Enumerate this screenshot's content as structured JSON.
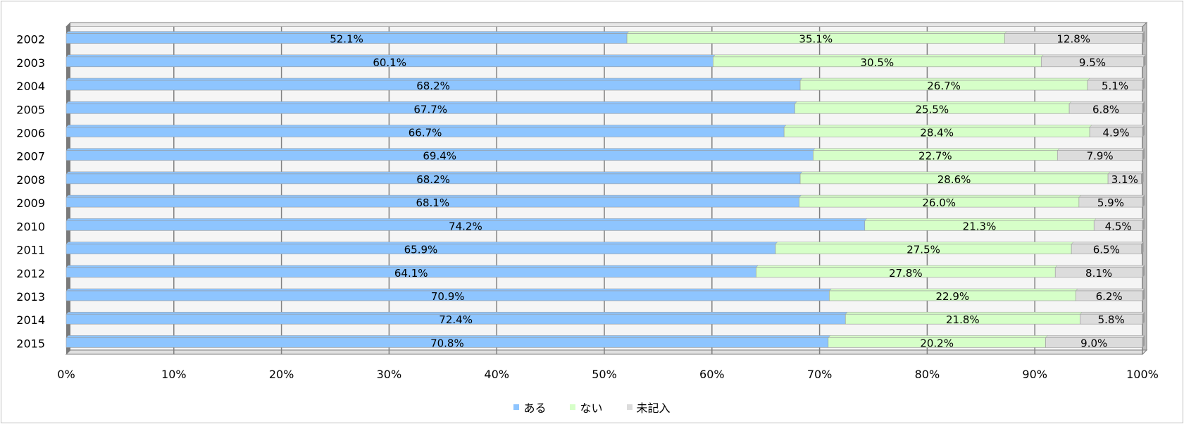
{
  "chart_data": {
    "type": "bar",
    "orientation": "horizontal",
    "stacked": "percent",
    "categories": [
      "2002",
      "2003",
      "2004",
      "2005",
      "2006",
      "2007",
      "2008",
      "2009",
      "2010",
      "2011",
      "2012",
      "2013",
      "2014",
      "2015"
    ],
    "series": [
      {
        "name": "ある",
        "color": "#8ec5ff",
        "values": [
          52.1,
          60.1,
          68.2,
          67.7,
          66.7,
          69.4,
          68.2,
          68.1,
          74.2,
          65.9,
          64.1,
          70.9,
          72.4,
          70.8
        ],
        "labels": [
          "52.1%",
          "60.1%",
          "68.2%",
          "67.7%",
          "66.7%",
          "69.4%",
          "68.2%",
          "68.1%",
          "74.2%",
          "65.9%",
          "64.1%",
          "70.9%",
          "72.4%",
          "70.8%"
        ]
      },
      {
        "name": "ない",
        "color": "#d6ffc8",
        "values": [
          35.1,
          30.5,
          26.7,
          25.5,
          28.4,
          22.7,
          28.6,
          26.0,
          21.3,
          27.5,
          27.8,
          22.9,
          21.8,
          20.2
        ],
        "labels": [
          "35.1%",
          "30.5%",
          "26.7%",
          "25.5%",
          "28.4%",
          "22.7%",
          "28.6%",
          "26.0%",
          "21.3%",
          "27.5%",
          "27.8%",
          "22.9%",
          "21.8%",
          "20.2%"
        ]
      },
      {
        "name": "未記入",
        "color": "#dcdcdc",
        "values": [
          12.8,
          9.5,
          5.1,
          6.8,
          4.9,
          7.9,
          3.1,
          5.9,
          4.5,
          6.5,
          8.1,
          6.2,
          5.8,
          9.0
        ],
        "labels": [
          "12.8%",
          "9.5%",
          "5.1%",
          "6.8%",
          "4.9%",
          "7.9%",
          "3.1%",
          "5.9%",
          "4.5%",
          "6.5%",
          "8.1%",
          "6.2%",
          "5.8%",
          "9.0%"
        ]
      }
    ],
    "xlim": [
      0,
      100
    ],
    "x_ticks": [
      "0%",
      "10%",
      "20%",
      "30%",
      "40%",
      "50%",
      "60%",
      "70%",
      "80%",
      "90%",
      "100%"
    ],
    "grid": true,
    "legend_position": "bottom",
    "wall_color": "#f5f5f5",
    "grid_color": "#808080"
  },
  "legend": {
    "items": [
      {
        "label": "ある",
        "color": "#8ec5ff"
      },
      {
        "label": "ない",
        "color": "#d6ffc8"
      },
      {
        "label": "未記入",
        "color": "#dcdcdc"
      }
    ]
  }
}
